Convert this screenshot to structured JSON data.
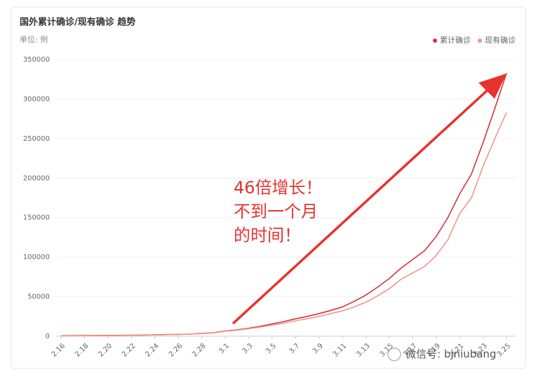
{
  "chart_data": {
    "type": "line",
    "title": "国外累计确诊/现有确诊 趋势",
    "subtitle": "单位: 例",
    "categories": [
      "2.16",
      null,
      "2.18",
      null,
      "2.20",
      null,
      "2.22",
      null,
      "2.24",
      null,
      "2.26",
      null,
      "2.28",
      null,
      "3.1",
      null,
      "3.3",
      null,
      "3.5",
      null,
      "3.7",
      null,
      "3.9",
      null,
      "3.11",
      null,
      "3.13",
      null,
      "3.15",
      null,
      "3.17",
      null,
      "3.19",
      null,
      "3.21",
      null,
      "3.23",
      null,
      "3.25"
    ],
    "series": [
      {
        "name": "累计确诊",
        "color": "#d0353a",
        "values": [
          600,
          700,
          800,
          900,
          1000,
          1100,
          1200,
          1400,
          1700,
          2000,
          2300,
          2700,
          3500,
          4400,
          6500,
          8000,
          10000,
          12500,
          15500,
          18500,
          22000,
          25000,
          28500,
          32500,
          37000,
          44000,
          52000,
          62000,
          73000,
          86000,
          97000,
          108000,
          126000,
          150000,
          180000,
          205000,
          245000,
          288000,
          333000
        ]
      },
      {
        "name": "现有确诊",
        "color": "#f1958a",
        "values": [
          500,
          600,
          700,
          800,
          900,
          1000,
          1100,
          1300,
          1600,
          1900,
          2200,
          2600,
          3300,
          4200,
          6200,
          7500,
          9500,
          11500,
          14000,
          16500,
          19500,
          22000,
          25000,
          28500,
          32000,
          37000,
          43000,
          51000,
          60000,
          72000,
          80000,
          88000,
          102000,
          122000,
          155000,
          175000,
          215000,
          250000,
          283000
        ]
      }
    ],
    "ylim": [
      0,
      350000
    ],
    "yticks": [
      0,
      50000,
      100000,
      150000,
      200000,
      250000,
      300000,
      350000
    ],
    "grid": true,
    "legend": "top-right",
    "annotation": [
      "46倍增长！",
      "不到一个月",
      "的时间！"
    ],
    "annotation_color": "#e8322e",
    "watermark": "微信号: bjniubang"
  }
}
